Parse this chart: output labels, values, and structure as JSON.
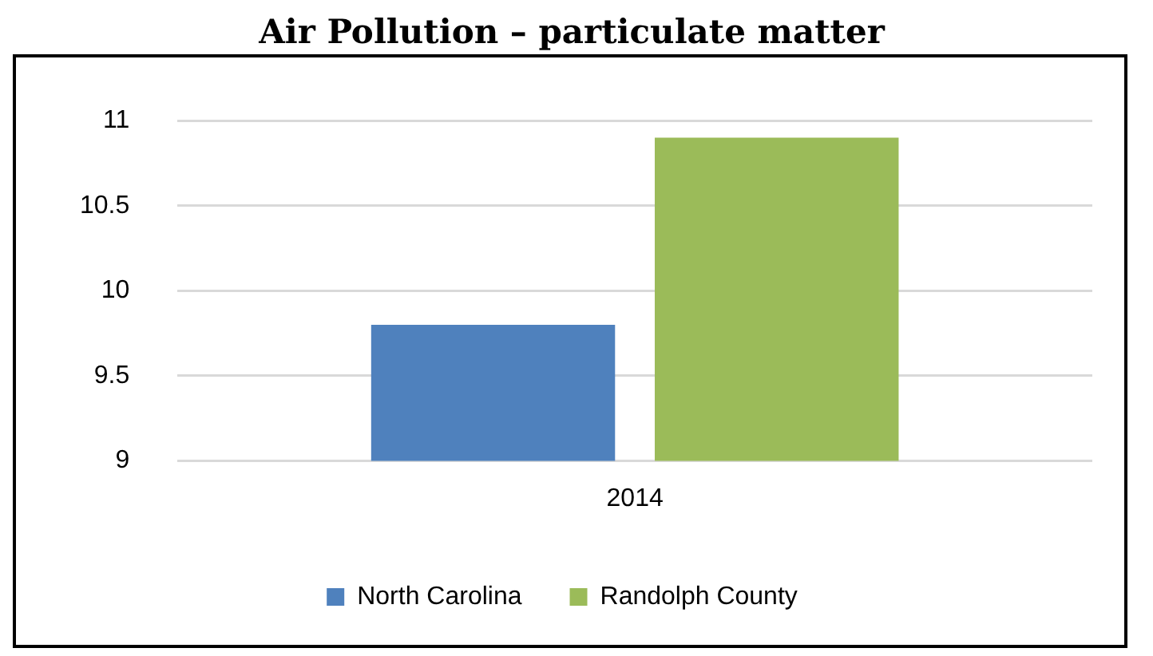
{
  "chart_data": {
    "type": "bar",
    "title": "Air Pollution – particulate matter",
    "categories": [
      "2014"
    ],
    "series": [
      {
        "name": "North Carolina",
        "color": "#4f81bd",
        "values": [
          9.8
        ]
      },
      {
        "name": "Randolph County",
        "color": "#9bbb59",
        "values": [
          10.9
        ]
      }
    ],
    "ylim": [
      9,
      11
    ],
    "yticks": [
      9,
      9.5,
      10,
      10.5,
      11
    ],
    "grid": "y",
    "legend": "bottom"
  }
}
